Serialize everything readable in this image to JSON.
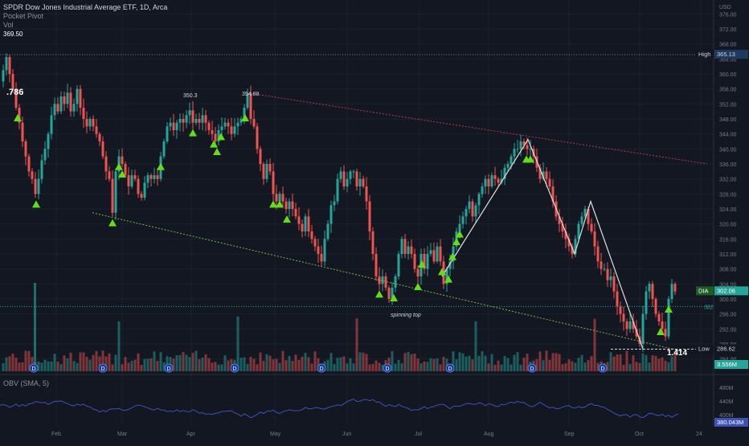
{
  "header": {
    "title": "SPDR Dow Jones Industrial Average ETF, 1D, Arca",
    "indicator1": "Pocket Pivot",
    "indicator2": "Vol",
    "top_left_value": "369.50"
  },
  "obv": {
    "label": "OBV (SMA, 5)",
    "last_value": "380.043M",
    "axis": [
      "480M",
      "440M",
      "400M"
    ]
  },
  "price_axis": {
    "unit": "USD",
    "ticks": [
      "376.00",
      "372.00",
      "368.00",
      "364.00",
      "360.00",
      "356.00",
      "352.00",
      "348.00",
      "344.00",
      "340.00",
      "336.00",
      "332.00",
      "328.00",
      "324.00",
      "320.00",
      "316.00",
      "312.00",
      "308.00",
      "304.00",
      "300.00",
      "296.00",
      "292.00",
      "288.00",
      "284.00"
    ],
    "high_label": "High",
    "high_value": "365.13",
    "low_label": "Low",
    "low_value": "286.62",
    "last_symbol": "DIA",
    "last_value": "302.06",
    "volume_value": "3.556M",
    "dotted_value": "382"
  },
  "time_axis": [
    "Feb",
    "Mar",
    "Apr",
    "May",
    "Jun",
    "Jul",
    "Aug",
    "Sep",
    "Oct",
    "24"
  ],
  "annotations": {
    "fib_786": ".786",
    "peak1": "350.3",
    "peak2": "354.88",
    "spinning": "spinning top",
    "fib_414": "1.414"
  },
  "colors": {
    "up": "#26a69a",
    "down": "#ef5350",
    "signal": "#64dd17",
    "obv": "#3f51b5"
  },
  "chart_data": {
    "type": "candlestick",
    "title": "SPDR Dow Jones Industrial Average ETF, 1D, Arca",
    "ylim": [
      282,
      378
    ],
    "price_path": [
      [
        0,
        358
      ],
      [
        4,
        361
      ],
      [
        8,
        364.5
      ],
      [
        12,
        360
      ],
      [
        16,
        356
      ],
      [
        20,
        351
      ],
      [
        24,
        347
      ],
      [
        28,
        342
      ],
      [
        32,
        338
      ],
      [
        36,
        334
      ],
      [
        40,
        332
      ],
      [
        44,
        328
      ],
      [
        48,
        332
      ],
      [
        52,
        337
      ],
      [
        56,
        340
      ],
      [
        60,
        344
      ],
      [
        64,
        349
      ],
      [
        68,
        352
      ],
      [
        72,
        350
      ],
      [
        76,
        354
      ],
      [
        80,
        352
      ],
      [
        84,
        355
      ],
      [
        88,
        350
      ],
      [
        92,
        352
      ],
      [
        96,
        356
      ],
      [
        100,
        351
      ],
      [
        104,
        348
      ],
      [
        108,
        346
      ],
      [
        112,
        348
      ],
      [
        116,
        346
      ],
      [
        120,
        344
      ],
      [
        124,
        342
      ],
      [
        128,
        338
      ],
      [
        132,
        334
      ],
      [
        136,
        332
      ],
      [
        140,
        323
      ],
      [
        144,
        334
      ],
      [
        148,
        338
      ],
      [
        152,
        336
      ],
      [
        156,
        333
      ],
      [
        160,
        330
      ],
      [
        164,
        333
      ],
      [
        168,
        332
      ],
      [
        172,
        328
      ],
      [
        176,
        327
      ],
      [
        180,
        331
      ],
      [
        184,
        333
      ],
      [
        188,
        332
      ],
      [
        192,
        333
      ],
      [
        196,
        332
      ],
      [
        200,
        338
      ],
      [
        204,
        342
      ],
      [
        208,
        346
      ],
      [
        212,
        347
      ],
      [
        216,
        345
      ],
      [
        220,
        347
      ],
      [
        224,
        348
      ],
      [
        228,
        347
      ],
      [
        232,
        349
      ],
      [
        236,
        350.3
      ],
      [
        240,
        347
      ],
      [
        244,
        348
      ],
      [
        248,
        347
      ],
      [
        252,
        349
      ],
      [
        256,
        347
      ],
      [
        260,
        345
      ],
      [
        264,
        344
      ],
      [
        268,
        342
      ],
      [
        272,
        345
      ],
      [
        276,
        346
      ],
      [
        280,
        347
      ],
      [
        284,
        346
      ],
      [
        288,
        344
      ],
      [
        292,
        346
      ],
      [
        296,
        347
      ],
      [
        300,
        348
      ],
      [
        304,
        351
      ],
      [
        308,
        354.88
      ],
      [
        312,
        348
      ],
      [
        316,
        346
      ],
      [
        320,
        340
      ],
      [
        324,
        336
      ],
      [
        328,
        332
      ],
      [
        332,
        336
      ],
      [
        336,
        334
      ],
      [
        340,
        328
      ],
      [
        344,
        326
      ],
      [
        348,
        328
      ],
      [
        352,
        326
      ],
      [
        356,
        324
      ],
      [
        360,
        326
      ],
      [
        364,
        324
      ],
      [
        368,
        322
      ],
      [
        372,
        320
      ],
      [
        376,
        318
      ],
      [
        380,
        322
      ],
      [
        384,
        318
      ],
      [
        388,
        316
      ],
      [
        392,
        314
      ],
      [
        396,
        312
      ],
      [
        400,
        310
      ],
      [
        404,
        316
      ],
      [
        408,
        320
      ],
      [
        412,
        325
      ],
      [
        416,
        326
      ],
      [
        420,
        332
      ],
      [
        424,
        334
      ],
      [
        428,
        330
      ],
      [
        432,
        332
      ],
      [
        436,
        334
      ],
      [
        440,
        334
      ],
      [
        444,
        330
      ],
      [
        448,
        332
      ],
      [
        452,
        330
      ],
      [
        456,
        326
      ],
      [
        460,
        318
      ],
      [
        464,
        312
      ],
      [
        468,
        306
      ],
      [
        472,
        304
      ],
      [
        476,
        306
      ],
      [
        480,
        303
      ],
      [
        484,
        300
      ],
      [
        488,
        303
      ],
      [
        492,
        306
      ],
      [
        496,
        312
      ],
      [
        500,
        316
      ],
      [
        504,
        312
      ],
      [
        508,
        314
      ],
      [
        512,
        312
      ],
      [
        516,
        308
      ],
      [
        520,
        306
      ],
      [
        524,
        312
      ],
      [
        528,
        308
      ],
      [
        532,
        312
      ],
      [
        536,
        313
      ],
      [
        540,
        310
      ],
      [
        544,
        314
      ],
      [
        548,
        310
      ],
      [
        552,
        304
      ],
      [
        556,
        308
      ],
      [
        560,
        310
      ],
      [
        564,
        314
      ],
      [
        568,
        318
      ],
      [
        572,
        320
      ],
      [
        576,
        322
      ],
      [
        580,
        324
      ],
      [
        584,
        326
      ],
      [
        588,
        322
      ],
      [
        592,
        325
      ],
      [
        596,
        328
      ],
      [
        600,
        330
      ],
      [
        604,
        332
      ],
      [
        608,
        330
      ],
      [
        612,
        333
      ],
      [
        616,
        332
      ],
      [
        620,
        331
      ],
      [
        624,
        332
      ],
      [
        628,
        335
      ],
      [
        632,
        336
      ],
      [
        636,
        338
      ],
      [
        640,
        340
      ],
      [
        644,
        340
      ],
      [
        648,
        342
      ],
      [
        652,
        341
      ],
      [
        656,
        340
      ],
      [
        660,
        340
      ],
      [
        664,
        338
      ],
      [
        668,
        335
      ],
      [
        672,
        332
      ],
      [
        676,
        334
      ],
      [
        680,
        332
      ],
      [
        684,
        330
      ],
      [
        688,
        326
      ],
      [
        692,
        322
      ],
      [
        696,
        320
      ],
      [
        700,
        318
      ],
      [
        704,
        316
      ],
      [
        708,
        314
      ],
      [
        712,
        312
      ],
      [
        716,
        316
      ],
      [
        720,
        320
      ],
      [
        724,
        322
      ],
      [
        728,
        324
      ],
      [
        732,
        320
      ],
      [
        736,
        318
      ],
      [
        740,
        314
      ],
      [
        744,
        310
      ],
      [
        748,
        308
      ],
      [
        752,
        308
      ],
      [
        756,
        305
      ],
      [
        760,
        306
      ],
      [
        764,
        302
      ],
      [
        768,
        298
      ],
      [
        772,
        296
      ],
      [
        776,
        294
      ],
      [
        780,
        292
      ],
      [
        784,
        294
      ],
      [
        788,
        292
      ],
      [
        792,
        290
      ],
      [
        796,
        288
      ],
      [
        800,
        296
      ],
      [
        804,
        302
      ],
      [
        808,
        304
      ],
      [
        812,
        300
      ],
      [
        816,
        296
      ],
      [
        820,
        294
      ],
      [
        824,
        292
      ],
      [
        828,
        290
      ],
      [
        832,
        300
      ],
      [
        836,
        304
      ],
      [
        840,
        302
      ]
    ],
    "signal_markers_x": [
      22,
      45,
      140,
      148,
      152,
      200,
      240,
      266,
      270,
      275,
      305,
      340,
      348,
      357,
      472,
      490,
      520,
      525,
      550,
      558,
      563,
      568,
      572,
      655,
      660,
      822,
      832
    ],
    "trendlines": {
      "red_upper": [
        [
          310,
          354.88
        ],
        [
          880,
          336
        ]
      ],
      "green_lower": [
        [
          115,
          323
        ],
        [
          850,
          286
        ]
      ],
      "white_zigzag": [
        [
          550,
          306
        ],
        [
          657,
          342.5
        ],
        [
          715,
          312
        ],
        [
          735,
          326
        ],
        [
          800,
          286.62
        ]
      ]
    },
    "high_level": 365.13,
    "low_level": 286.62,
    "last_price": 302.06
  }
}
